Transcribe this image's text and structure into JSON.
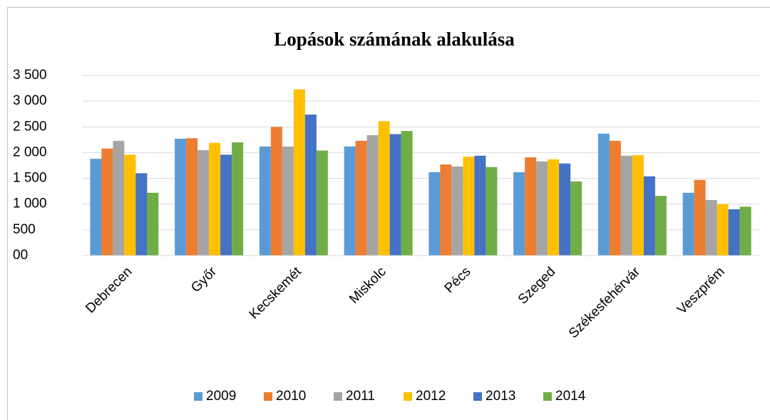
{
  "chart_data": {
    "type": "bar",
    "title": "Lopások számának alakulása",
    "categories": [
      "Debrecen",
      "Győr",
      "Kecskemét",
      "Miskolc",
      "Pécs",
      "Szeged",
      "Székesfehérvár",
      "Veszprém"
    ],
    "series": [
      {
        "name": "2009",
        "color": "#5b9bd5",
        "values": [
          1880,
          2270,
          2120,
          2120,
          1620,
          1620,
          2370,
          1220
        ]
      },
      {
        "name": "2010",
        "color": "#ed7d31",
        "values": [
          2080,
          2280,
          2500,
          2230,
          1770,
          1910,
          2230,
          1470
        ]
      },
      {
        "name": "2011",
        "color": "#a5a5a5",
        "values": [
          2230,
          2050,
          2120,
          2340,
          1730,
          1830,
          1940,
          1080
        ]
      },
      {
        "name": "2012",
        "color": "#ffc000",
        "values": [
          1960,
          2190,
          3230,
          2610,
          1920,
          1870,
          1950,
          1000
        ]
      },
      {
        "name": "2013",
        "color": "#4472c4",
        "values": [
          1600,
          1960,
          2740,
          2360,
          1940,
          1790,
          1540,
          900
        ]
      },
      {
        "name": "2014",
        "color": "#70ad47",
        "values": [
          1220,
          2200,
          2040,
          2420,
          1720,
          1440,
          1160,
          950
        ]
      }
    ],
    "ylim": [
      0,
      3500
    ],
    "yticks": [
      {
        "value": 0,
        "label": "00"
      },
      500,
      {
        "value": 1000,
        "label": "1 000"
      },
      {
        "value": 1500,
        "label": "1 500"
      },
      {
        "value": 2000,
        "label": "2 000"
      },
      {
        "value": 2500,
        "label": "2 500"
      },
      {
        "value": 3000,
        "label": "3 000"
      },
      {
        "value": 3500,
        "label": "3 500"
      }
    ],
    "grid": true,
    "legend": "bottom"
  }
}
